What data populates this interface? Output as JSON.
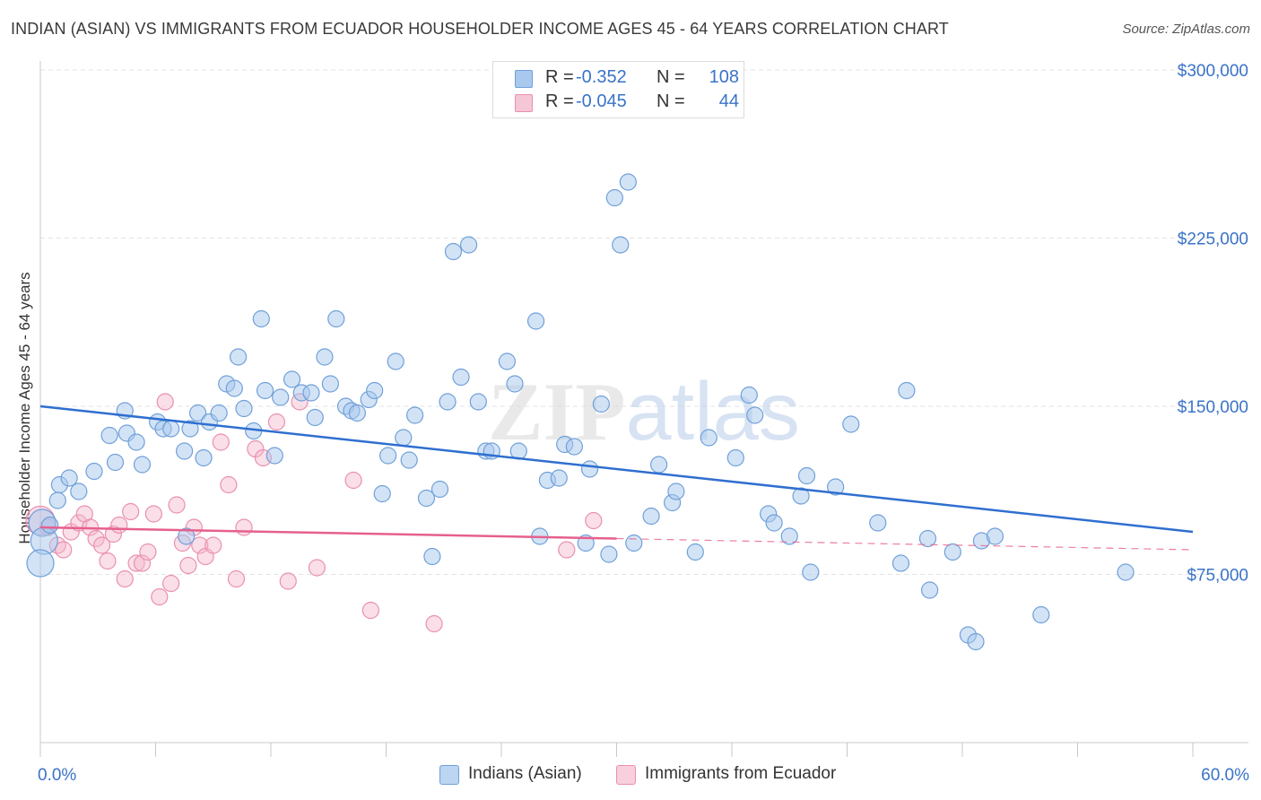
{
  "title": "INDIAN (ASIAN) VS IMMIGRANTS FROM ECUADOR HOUSEHOLDER INCOME AGES 45 - 64 YEARS CORRELATION CHART",
  "source": "Source: ZipAtlas.com",
  "watermark": "ZIPatlas",
  "legend": {
    "rows": [
      {
        "r_label": "R =",
        "r_value": "-0.352",
        "n_label": "N =",
        "n_value": "108"
      },
      {
        "r_label": "R =",
        "r_value": "-0.045",
        "n_label": "N =",
        "n_value": "44"
      }
    ]
  },
  "bottom_legend": {
    "series1": "Indians (Asian)",
    "series2": "Immigrants from Ecuador"
  },
  "colors": {
    "blue_fill": "#a8c8ee",
    "blue_stroke": "#6fa0d8",
    "blue_line": "#2f6fd0",
    "pink_fill": "#f5b8cd",
    "pink_stroke": "#ea8fb0",
    "pink_line": "#e6608c",
    "axis_text": "#3a73c8",
    "grid": "#e3e3e3"
  },
  "chart_data": {
    "type": "scatter",
    "title": "INDIAN (ASIAN) VS IMMIGRANTS FROM ECUADOR HOUSEHOLDER INCOME AGES 45 - 64 YEARS CORRELATION CHART",
    "xlabel": "",
    "ylabel": "Householder Income Ages 45 - 64 years",
    "xlim": [
      0,
      60
    ],
    "ylim": [
      0,
      300000
    ],
    "x_tick_labels": [
      "0.0%",
      "60.0%"
    ],
    "y_ticks": [
      75000,
      150000,
      225000,
      300000
    ],
    "y_tick_labels": [
      "$75,000",
      "$150,000",
      "$225,000",
      "$300,000"
    ],
    "grid": true,
    "legend_position": "top-center",
    "series": [
      {
        "name": "Indians (Asian)",
        "color": "#a8c8ee",
        "trend": {
          "x": [
            0,
            60
          ],
          "y": [
            150000,
            94000
          ]
        },
        "points": [
          [
            0.1,
            98000
          ],
          [
            0.2,
            90000
          ],
          [
            0.0,
            80000
          ],
          [
            0.5,
            97000
          ],
          [
            1.0,
            115000
          ],
          [
            1.5,
            118000
          ],
          [
            2.0,
            112000
          ],
          [
            2.8,
            121000
          ],
          [
            0.9,
            108000
          ],
          [
            3.6,
            137000
          ],
          [
            4.4,
            148000
          ],
          [
            4.5,
            138000
          ],
          [
            3.9,
            125000
          ],
          [
            5.0,
            134000
          ],
          [
            5.3,
            124000
          ],
          [
            6.1,
            143000
          ],
          [
            6.4,
            140000
          ],
          [
            6.8,
            140000
          ],
          [
            7.5,
            130000
          ],
          [
            7.6,
            92000
          ],
          [
            7.8,
            140000
          ],
          [
            8.2,
            147000
          ],
          [
            8.5,
            127000
          ],
          [
            8.8,
            143000
          ],
          [
            9.3,
            147000
          ],
          [
            9.7,
            160000
          ],
          [
            10.1,
            158000
          ],
          [
            10.3,
            172000
          ],
          [
            10.6,
            149000
          ],
          [
            11.1,
            139000
          ],
          [
            11.5,
            189000
          ],
          [
            11.7,
            157000
          ],
          [
            12.2,
            128000
          ],
          [
            12.5,
            154000
          ],
          [
            13.1,
            162000
          ],
          [
            13.6,
            156000
          ],
          [
            14.1,
            156000
          ],
          [
            14.3,
            145000
          ],
          [
            14.8,
            172000
          ],
          [
            15.1,
            160000
          ],
          [
            15.4,
            189000
          ],
          [
            15.9,
            150000
          ],
          [
            16.2,
            148000
          ],
          [
            16.5,
            147000
          ],
          [
            17.1,
            153000
          ],
          [
            17.4,
            157000
          ],
          [
            17.8,
            111000
          ],
          [
            18.1,
            128000
          ],
          [
            18.5,
            170000
          ],
          [
            18.9,
            136000
          ],
          [
            19.2,
            126000
          ],
          [
            19.5,
            146000
          ],
          [
            20.1,
            109000
          ],
          [
            20.4,
            83000
          ],
          [
            20.8,
            113000
          ],
          [
            21.2,
            152000
          ],
          [
            21.5,
            219000
          ],
          [
            21.9,
            163000
          ],
          [
            22.3,
            222000
          ],
          [
            22.8,
            152000
          ],
          [
            23.2,
            130000
          ],
          [
            23.5,
            130000
          ],
          [
            24.3,
            170000
          ],
          [
            24.7,
            160000
          ],
          [
            24.9,
            130000
          ],
          [
            25.8,
            188000
          ],
          [
            26.0,
            92000
          ],
          [
            26.4,
            117000
          ],
          [
            27.0,
            118000
          ],
          [
            27.3,
            133000
          ],
          [
            27.8,
            132000
          ],
          [
            28.4,
            89000
          ],
          [
            28.6,
            122000
          ],
          [
            29.2,
            151000
          ],
          [
            29.6,
            84000
          ],
          [
            29.9,
            243000
          ],
          [
            30.2,
            222000
          ],
          [
            30.6,
            250000
          ],
          [
            30.9,
            89000
          ],
          [
            31.8,
            101000
          ],
          [
            32.2,
            124000
          ],
          [
            32.9,
            107000
          ],
          [
            33.1,
            112000
          ],
          [
            34.1,
            85000
          ],
          [
            34.8,
            136000
          ],
          [
            36.2,
            127000
          ],
          [
            36.9,
            155000
          ],
          [
            37.2,
            146000
          ],
          [
            37.9,
            102000
          ],
          [
            38.2,
            98000
          ],
          [
            39.0,
            92000
          ],
          [
            39.6,
            110000
          ],
          [
            39.9,
            119000
          ],
          [
            40.1,
            76000
          ],
          [
            41.4,
            114000
          ],
          [
            42.2,
            142000
          ],
          [
            43.6,
            98000
          ],
          [
            44.8,
            80000
          ],
          [
            45.1,
            157000
          ],
          [
            46.2,
            91000
          ],
          [
            46.3,
            68000
          ],
          [
            47.5,
            85000
          ],
          [
            48.3,
            48000
          ],
          [
            48.7,
            45000
          ],
          [
            49.0,
            90000
          ],
          [
            49.7,
            92000
          ],
          [
            52.1,
            57000
          ],
          [
            56.5,
            76000
          ]
        ]
      },
      {
        "name": "Immigrants from Ecuador",
        "color": "#f5b8cd",
        "trend": {
          "x": [
            0,
            30
          ],
          "y": [
            96000,
            91000
          ]
        },
        "points": [
          [
            0.0,
            99000
          ],
          [
            0.4,
            96000
          ],
          [
            0.9,
            88000
          ],
          [
            1.2,
            86000
          ],
          [
            1.6,
            94000
          ],
          [
            2.0,
            98000
          ],
          [
            2.3,
            102000
          ],
          [
            2.6,
            96000
          ],
          [
            2.9,
            91000
          ],
          [
            3.2,
            88000
          ],
          [
            3.5,
            81000
          ],
          [
            3.8,
            93000
          ],
          [
            4.1,
            97000
          ],
          [
            4.4,
            73000
          ],
          [
            4.7,
            103000
          ],
          [
            5.0,
            80000
          ],
          [
            5.3,
            80000
          ],
          [
            5.6,
            85000
          ],
          [
            5.9,
            102000
          ],
          [
            6.2,
            65000
          ],
          [
            6.5,
            152000
          ],
          [
            6.8,
            71000
          ],
          [
            7.1,
            106000
          ],
          [
            7.4,
            89000
          ],
          [
            7.7,
            79000
          ],
          [
            8.0,
            96000
          ],
          [
            8.3,
            88000
          ],
          [
            8.6,
            83000
          ],
          [
            9.0,
            88000
          ],
          [
            9.4,
            134000
          ],
          [
            9.8,
            115000
          ],
          [
            10.2,
            73000
          ],
          [
            10.6,
            96000
          ],
          [
            11.2,
            131000
          ],
          [
            11.6,
            127000
          ],
          [
            12.3,
            143000
          ],
          [
            12.9,
            72000
          ],
          [
            13.5,
            152000
          ],
          [
            14.4,
            78000
          ],
          [
            16.3,
            117000
          ],
          [
            17.2,
            59000
          ],
          [
            20.5,
            53000
          ],
          [
            27.4,
            86000
          ],
          [
            28.8,
            99000
          ]
        ]
      }
    ]
  }
}
